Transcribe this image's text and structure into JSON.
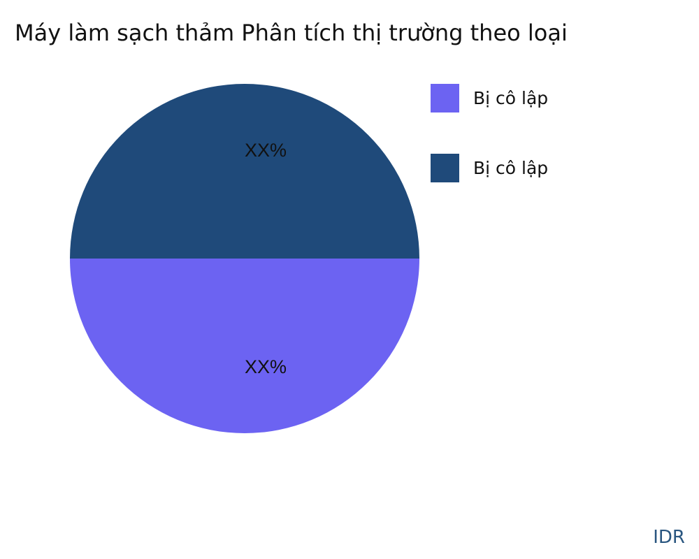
{
  "chart_data": {
    "type": "pie",
    "title": "Máy làm sạch thảm Phân tích thị trường theo loại",
    "slices": [
      {
        "name": "Bị cô lập",
        "value": 50,
        "label": "XX%",
        "color": "#6c63f2"
      },
      {
        "name": "Bị cô lập",
        "value": 50,
        "label": "XX%",
        "color": "#1f4a7a"
      }
    ],
    "legend_position": "right"
  },
  "brand": "IDR"
}
